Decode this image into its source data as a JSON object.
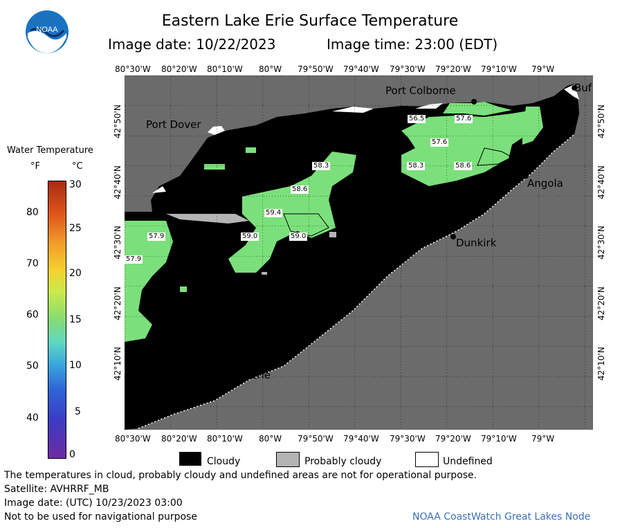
{
  "header": {
    "title": "Eastern Lake Erie Surface Temperature",
    "image_date_label": "Image date: 10/22/2023",
    "image_time_label": "Image time: 23:00 (EDT)"
  },
  "logo": {
    "text": "NOAA"
  },
  "colorbar": {
    "title": "Water Temperature",
    "unit_f": "°F",
    "unit_c": "°C",
    "f_ticks": [
      "80",
      "70",
      "60",
      "50",
      "40"
    ],
    "c_ticks": [
      "30",
      "25",
      "20",
      "15",
      "10",
      "5",
      "0"
    ]
  },
  "axes": {
    "lon_labels": [
      "80°30'W",
      "80°20'W",
      "80°10'W",
      "80°W",
      "79°50'W",
      "79°40'W",
      "79°30'W",
      "79°20'W",
      "79°10'W",
      "79°W"
    ],
    "lat_labels": [
      "42°50'N",
      "42°40'N",
      "42°30'N",
      "42°20'N",
      "42°10'N"
    ]
  },
  "places": {
    "port_colborne": "Port Colborne",
    "port_dover": "Port Dover",
    "buffalo": "Buf",
    "angola": "Angola",
    "dunkirk": "Dunkirk",
    "erie": "Erie"
  },
  "temps": [
    "56.5",
    "57.6",
    "57.6",
    "58.3",
    "58.3",
    "58.6",
    "58.6",
    "59.4",
    "59.0",
    "59.0",
    "57.9",
    "57.9"
  ],
  "legend": {
    "cloudy": "Cloudy",
    "probably_cloudy": "Probably cloudy",
    "undefined": "Undefined"
  },
  "notes": {
    "disclaimer": "The temperatures in cloud, probably cloudy and undefined areas are not for operational purpose.",
    "satellite": "Satellite: AVHRRF_MB",
    "utc_date": "Image date: (UTC) 10/23/2023  03:00",
    "nav": "Not to be used for navigational purpose",
    "credit": "NOAA CoastWatch Great Lakes Node"
  },
  "colors": {
    "cloud": "#000000",
    "land": "#6b6b6b",
    "probably_cloudy": "#b4b4b4",
    "water_warm": "#7be07b"
  }
}
